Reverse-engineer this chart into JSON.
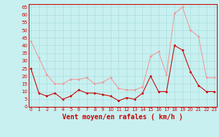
{
  "x": [
    0,
    1,
    2,
    3,
    4,
    5,
    6,
    7,
    8,
    9,
    10,
    11,
    12,
    13,
    14,
    15,
    16,
    17,
    18,
    19,
    20,
    21,
    22,
    23
  ],
  "vent_moyen": [
    25,
    9,
    7,
    9,
    5,
    7,
    11,
    9,
    9,
    8,
    7,
    4,
    6,
    5,
    9,
    20,
    10,
    10,
    40,
    37,
    23,
    14,
    10,
    10
  ],
  "rafales": [
    43,
    32,
    21,
    15,
    15,
    18,
    18,
    19,
    15,
    16,
    19,
    12,
    11,
    11,
    13,
    33,
    36,
    21,
    61,
    65,
    50,
    46,
    19,
    19
  ],
  "bg_color": "#c8f0f0",
  "grid_color": "#aadddd",
  "line_moyen_color": "#cc0000",
  "line_rafales_color": "#ee9999",
  "marker_size": 2,
  "xlabel": "Vent moyen/en rafales ( km/h )",
  "ylim": [
    0,
    67
  ],
  "yticks": [
    0,
    5,
    10,
    15,
    20,
    25,
    30,
    35,
    40,
    45,
    50,
    55,
    60,
    65
  ],
  "xticks": [
    0,
    1,
    2,
    3,
    4,
    5,
    6,
    7,
    8,
    9,
    10,
    11,
    12,
    13,
    14,
    15,
    16,
    17,
    18,
    19,
    20,
    21,
    22,
    23
  ],
  "xlabel_color": "#cc0000",
  "xlabel_fontsize": 7,
  "tick_fontsize": 5,
  "linewidth": 0.8
}
